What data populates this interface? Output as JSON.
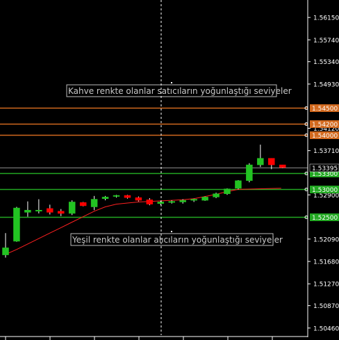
{
  "chart_data": {
    "type": "candlestick",
    "title": "",
    "ylim": [
      1.5033,
      1.5647
    ],
    "grid": false,
    "colors": {
      "background": "#000000",
      "bull": "#22c322",
      "bear": "#ff0000",
      "ma_line": "#ff2020",
      "seller_level": "#d2691e",
      "buyer_level": "#22a822",
      "axis_text": "#ffffff",
      "crosshair": "#ffffff"
    },
    "y_ticks": [
      "1.56150",
      "1.55740",
      "1.55340",
      "1.54930",
      "1.54120",
      "1.53710",
      "1.52900",
      "1.52090",
      "1.51680",
      "1.51270",
      "1.50870",
      "1.50460"
    ],
    "y_tick_values": [
      1.5615,
      1.5574,
      1.5534,
      1.5493,
      1.5412,
      1.5371,
      1.529,
      1.5209,
      1.5168,
      1.5127,
      1.5087,
      1.5046
    ],
    "current_price_label": "1.53395",
    "current_price": 1.53395,
    "candles": [
      {
        "o": 1.518,
        "h": 1.522,
        "l": 1.5175,
        "c": 1.5193
      },
      {
        "o": 1.5205,
        "h": 1.5268,
        "l": 1.5204,
        "c": 1.5266
      },
      {
        "o": 1.5258,
        "h": 1.5278,
        "l": 1.525,
        "c": 1.5262
      },
      {
        "o": 1.5262,
        "h": 1.5282,
        "l": 1.5256,
        "c": 1.5262
      },
      {
        "o": 1.5265,
        "h": 1.5272,
        "l": 1.5254,
        "c": 1.5258
      },
      {
        "o": 1.526,
        "h": 1.5264,
        "l": 1.5251,
        "c": 1.5256
      },
      {
        "o": 1.5256,
        "h": 1.528,
        "l": 1.5253,
        "c": 1.5277
      },
      {
        "o": 1.5276,
        "h": 1.5277,
        "l": 1.5269,
        "c": 1.527
      },
      {
        "o": 1.5268,
        "h": 1.5288,
        "l": 1.5262,
        "c": 1.5282
      },
      {
        "o": 1.5283,
        "h": 1.5288,
        "l": 1.528,
        "c": 1.5286
      },
      {
        "o": 1.5288,
        "h": 1.529,
        "l": 1.5285,
        "c": 1.5289
      },
      {
        "o": 1.5289,
        "h": 1.529,
        "l": 1.5283,
        "c": 1.5285
      },
      {
        "o": 1.5285,
        "h": 1.5287,
        "l": 1.5278,
        "c": 1.528
      },
      {
        "o": 1.5281,
        "h": 1.5284,
        "l": 1.5271,
        "c": 1.5273
      },
      {
        "o": 1.5274,
        "h": 1.5279,
        "l": 1.5271,
        "c": 1.5277
      },
      {
        "o": 1.5277,
        "h": 1.528,
        "l": 1.5274,
        "c": 1.5278
      },
      {
        "o": 1.5277,
        "h": 1.5282,
        "l": 1.5274,
        "c": 1.528
      },
      {
        "o": 1.528,
        "h": 1.5283,
        "l": 1.5277,
        "c": 1.5282
      },
      {
        "o": 1.528,
        "h": 1.5287,
        "l": 1.5279,
        "c": 1.5286
      },
      {
        "o": 1.5286,
        "h": 1.5294,
        "l": 1.5284,
        "c": 1.5292
      },
      {
        "o": 1.5292,
        "h": 1.5302,
        "l": 1.529,
        "c": 1.5301
      },
      {
        "o": 1.5302,
        "h": 1.5317,
        "l": 1.53,
        "c": 1.5316
      },
      {
        "o": 1.5316,
        "h": 1.5348,
        "l": 1.5313,
        "c": 1.5345
      },
      {
        "o": 1.5345,
        "h": 1.5382,
        "l": 1.5341,
        "c": 1.5357
      },
      {
        "o": 1.5357,
        "h": 1.5357,
        "l": 1.5337,
        "c": 1.5345
      },
      {
        "o": 1.5345,
        "h": 1.5345,
        "l": 1.5339,
        "c": 1.534
      }
    ],
    "moving_average": [
      1.5181,
      1.519,
      1.52,
      1.521,
      1.522,
      1.523,
      1.524,
      1.525,
      1.526,
      1.5268,
      1.5273,
      1.5275,
      1.5277,
      1.5278,
      1.5279,
      1.528,
      1.5281,
      1.5283,
      1.5287,
      1.5291,
      1.5296,
      1.53
    ],
    "resistance_levels": [
      {
        "price": 1.545,
        "label": "1.54500"
      },
      {
        "price": 1.542,
        "label": "1.54200"
      },
      {
        "price": 1.54,
        "label": "1.54000"
      }
    ],
    "support_levels": [
      {
        "price": 1.533,
        "label": "1.53300"
      },
      {
        "price": 1.53,
        "label": "1.53000"
      },
      {
        "price": 1.525,
        "label": "1.52500"
      }
    ],
    "annotations": {
      "sellers": "Kahve renkte olanlar satıcıların yoğunlaştığı seviyeler",
      "buyers": "Yeşil renkte olanlar alıcıların yoğunlaştığı seviyeler"
    }
  }
}
